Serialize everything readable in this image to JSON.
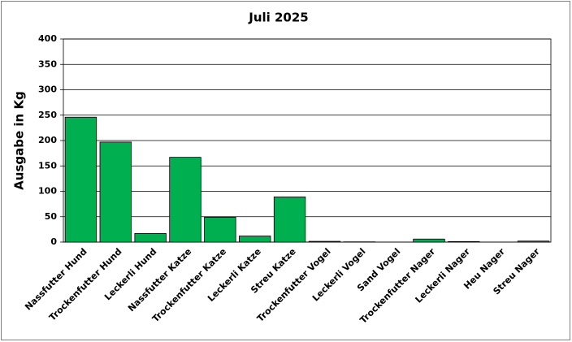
{
  "chart_data": {
    "type": "bar",
    "title": "Juli 2025",
    "y_label": "Ausgabe in Kg",
    "categories": [
      "Nassfutter Hund",
      "Trockenfutter Hund",
      "Leckerli Hund",
      "Nassfutter Katze",
      "Trockenfutter Katze",
      "Leckerli Katze",
      "Streu Katze",
      "Trockenfutter Vogel",
      "Leckerli Vogel",
      "Sand Vogel",
      "Trockenfutter Nager",
      "Leckerli Nager",
      "Heu Nager",
      "Streu Nager"
    ],
    "values": [
      246,
      197,
      17,
      167,
      49,
      12,
      89,
      1.5,
      0.5,
      0,
      6,
      1,
      0,
      2
    ],
    "color": "#00b050",
    "ylim": [
      0,
      400
    ],
    "yticks": [
      0,
      50,
      100,
      150,
      200,
      250,
      300,
      350,
      400
    ],
    "grid": true
  }
}
